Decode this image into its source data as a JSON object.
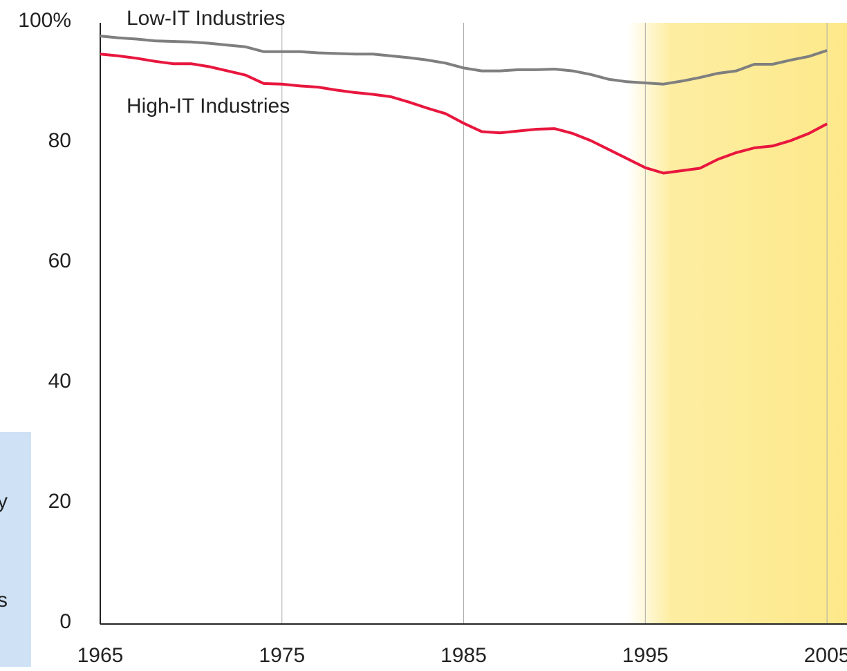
{
  "chart_data": {
    "type": "line",
    "x": [
      1965,
      1966,
      1967,
      1968,
      1969,
      1970,
      1971,
      1972,
      1973,
      1974,
      1975,
      1976,
      1977,
      1978,
      1979,
      1980,
      1981,
      1982,
      1983,
      1984,
      1985,
      1986,
      1987,
      1988,
      1989,
      1990,
      1991,
      1992,
      1993,
      1994,
      1995,
      1996,
      1997,
      1998,
      1999,
      2000,
      2001,
      2002,
      2003,
      2004,
      2005
    ],
    "series": [
      {
        "name": "Low-IT Industries",
        "color": "#7f7f7f",
        "values": [
          97.8,
          97.5,
          97.3,
          97.0,
          96.9,
          96.8,
          96.6,
          96.3,
          96.0,
          95.2,
          95.2,
          95.2,
          95.0,
          94.9,
          94.8,
          94.8,
          94.5,
          94.2,
          93.8,
          93.3,
          92.5,
          92.0,
          92.0,
          92.2,
          92.2,
          92.3,
          92.0,
          91.4,
          90.6,
          90.2,
          90.0,
          89.8,
          90.3,
          90.9,
          91.6,
          92.0,
          93.1,
          93.1,
          93.8,
          94.4,
          95.4
        ]
      },
      {
        "name": "High-IT Industries",
        "color": "#e8173e",
        "values": [
          94.8,
          94.5,
          94.1,
          93.6,
          93.2,
          93.2,
          92.7,
          92.0,
          91.3,
          89.9,
          89.8,
          89.5,
          89.3,
          88.8,
          88.4,
          88.1,
          87.7,
          86.8,
          85.8,
          84.9,
          83.3,
          81.9,
          81.7,
          82.0,
          82.3,
          82.4,
          81.6,
          80.4,
          78.9,
          77.4,
          75.9,
          75.0,
          75.4,
          75.8,
          77.3,
          78.4,
          79.2,
          79.5,
          80.4,
          81.6,
          83.2
        ]
      }
    ],
    "xlim": [
      1965,
      2006.1
    ],
    "xticks": [
      1965,
      1975,
      1985,
      1995,
      2005
    ],
    "ylim": [
      0,
      100
    ],
    "yticks": [
      0,
      20,
      40,
      60,
      80,
      {
        "value": 100,
        "label": "100%"
      }
    ],
    "grid": true,
    "shaded_range": [
      1994,
      2006.1
    ],
    "cropped_text": [
      "y",
      "s"
    ]
  }
}
